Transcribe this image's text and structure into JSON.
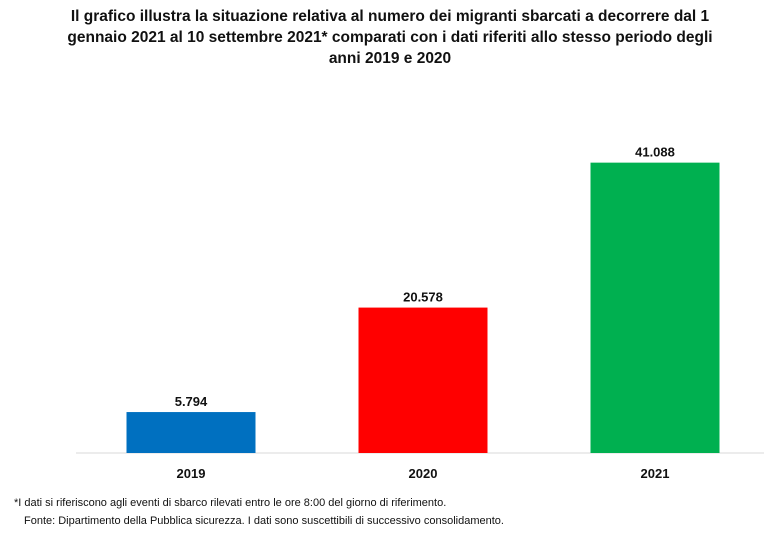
{
  "chart_data": {
    "type": "bar",
    "title": "Il grafico illustra la situazione relativa al numero dei migranti sbarcati a decorrere dal 1 gennaio 2021 al 10 settembre 2021* comparati con i dati riferiti allo stesso periodo degli anni 2019  e 2020",
    "categories": [
      "2019",
      "2020",
      "2021"
    ],
    "values": [
      5794,
      20578,
      41088
    ],
    "labels": [
      "5.794",
      "20.578",
      "41.088"
    ],
    "colors": [
      "#0070c0",
      "#ff0000",
      "#00b050"
    ],
    "xlabel": "",
    "ylabel": "",
    "ylim": [
      0,
      45000
    ],
    "grid": false
  },
  "notes": {
    "footnote": "*I dati si riferiscono agli eventi di sbarco rilevati entro le ore 8:00 del giorno di riferimento.",
    "source": "Fonte: Dipartimento della Pubblica sicurezza. I dati sono suscettibili di successivo consolidamento."
  }
}
